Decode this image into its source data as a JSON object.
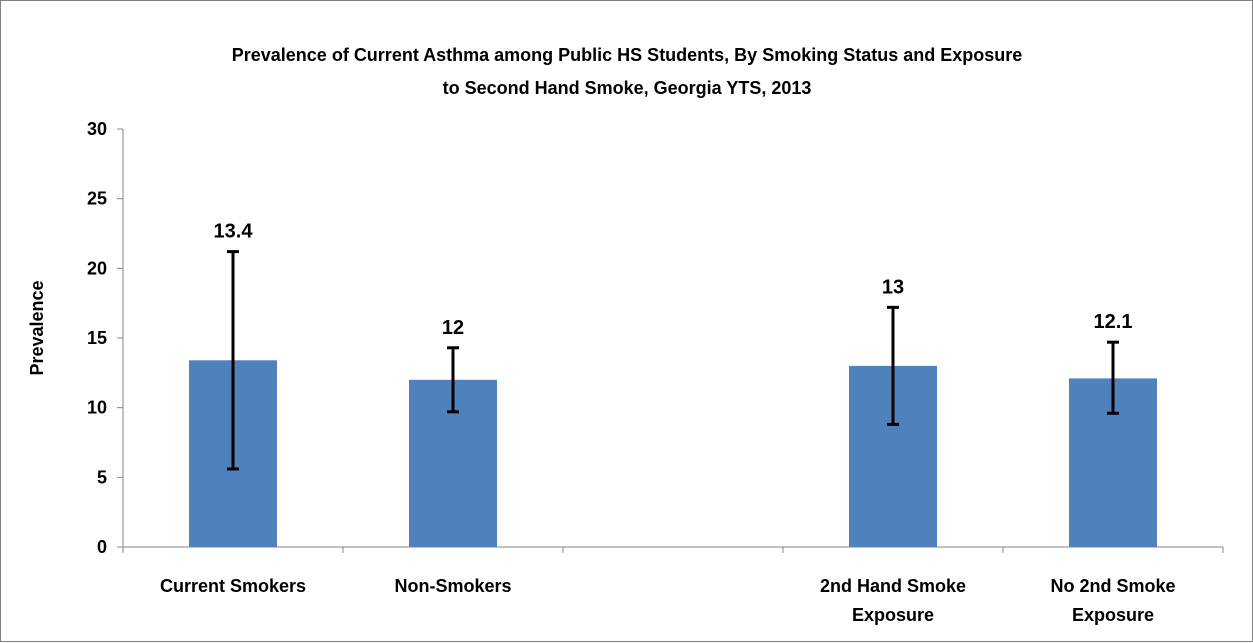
{
  "chart_data": {
    "type": "bar",
    "title": "Prevalence of Current Asthma among Public HS Students, By Smoking Status and Exposure to Second Hand Smoke, Georgia YTS, 2013",
    "title_lines": [
      "Prevalence of Current Asthma among Public HS Students, By Smoking Status and Exposure",
      "to Second Hand Smoke, Georgia YTS, 2013"
    ],
    "xlabel": "",
    "ylabel": "Prevalence",
    "ylim": [
      0,
      30
    ],
    "yticks": [
      0,
      5,
      10,
      15,
      20,
      25,
      30
    ],
    "grid": false,
    "legend": "none",
    "categories": [
      {
        "label_lines": [
          "Current Smokers"
        ],
        "value": 13.4,
        "label": "13.4",
        "ci_low": 5.6,
        "ci_high": 21.2
      },
      {
        "label_lines": [
          "Non-Smokers"
        ],
        "value": 12,
        "label": "12",
        "ci_low": 9.7,
        "ci_high": 14.3
      },
      {
        "label_lines": [],
        "value": null,
        "label": "",
        "ci_low": null,
        "ci_high": null
      },
      {
        "label_lines": [
          "2nd Hand Smoke",
          "Exposure"
        ],
        "value": 13,
        "label": "13",
        "ci_low": 8.8,
        "ci_high": 17.2
      },
      {
        "label_lines": [
          "No 2nd Smoke",
          "Exposure"
        ],
        "value": 12.1,
        "label": "12.1",
        "ci_low": 9.6,
        "ci_high": 14.7
      }
    ],
    "colors": {
      "bar": "#4f81bd",
      "error_bar": "#000000",
      "axis": "#868686"
    }
  }
}
